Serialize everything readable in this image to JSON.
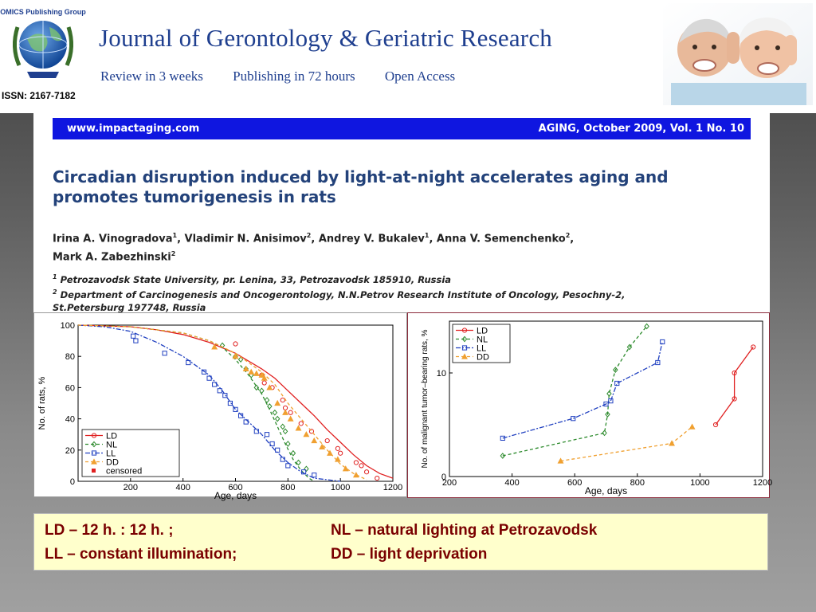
{
  "header": {
    "logo_text": "OMICS Publishing Group",
    "issn": "ISSN: 2167-7182",
    "journal_title": "Journal of Gerontology & Geriatric Research",
    "taglines": [
      "Review in 3 weeks",
      "Publishing in 72 hours",
      "Open Access"
    ]
  },
  "paper": {
    "site": "www.impactaging.com",
    "issue": "AGING, October 2009, Vol. 1 No. 10",
    "title_line1": "Circadian disruption induced by light-at-night accelerates aging and",
    "title_line2": "promotes tumorigenesis in rats",
    "authors_line1": "Irina A. Vinogradova",
    "authors_line1b": ", Vladimir N. Anisimov",
    "authors_line1c": ", Andrey V. Bukalev",
    "authors_line1d": ", Anna V. Semenchenko",
    "authors_line1e": ",",
    "authors_line2": "Mark A. Zabezhinski",
    "sup1": "1",
    "sup2": "2",
    "affil1": "Petrozavodsk State University, pr. Lenina, 33, Petrozavodsk 185910, Russia",
    "affil2": "Department of Carcinogenesis and Oncogerontology,  N.N.Petrov Research Institute of Oncology, Pesochny-2,",
    "affil2b": "St.Petersburg 197748, Russia"
  },
  "legend_box": {
    "ld": "LD – 12 h. : 12 h. ;",
    "nl": "NL – natural lighting at Petrozavodsk",
    "ll": "LL – constant illumination;",
    "dd": "DD – light deprivation"
  },
  "chart_data": [
    {
      "type": "line",
      "xlabel": "Age, days",
      "ylabel": "No. of rats, %",
      "xlim": [
        0,
        1200
      ],
      "ylim": [
        0,
        100
      ],
      "xticks": [
        "200",
        "400",
        "600",
        "800",
        "1000",
        "1200"
      ],
      "yticks": [
        "0",
        "20",
        "40",
        "60",
        "80",
        "100"
      ],
      "legend_position": "bottom-left",
      "extra_legend": "censored",
      "series": [
        {
          "name": "LD",
          "color": "#e02020",
          "dash": "",
          "marker": "circle",
          "x": [
            0,
            100,
            200,
            300,
            400,
            500,
            600,
            700,
            750,
            800,
            850,
            900,
            950,
            1000,
            1050,
            1100,
            1150,
            1200
          ],
          "y": [
            100,
            99.5,
            99,
            97,
            94,
            89,
            82,
            72,
            66,
            58,
            50,
            42,
            33,
            25,
            17,
            10,
            5,
            2
          ],
          "points": [
            [
              600,
              88
            ],
            [
              700,
              68
            ],
            [
              710,
              63
            ],
            [
              740,
              60
            ],
            [
              780,
              52
            ],
            [
              790,
              47
            ],
            [
              810,
              44
            ],
            [
              850,
              37
            ],
            [
              890,
              32
            ],
            [
              950,
              26
            ],
            [
              990,
              21
            ],
            [
              1000,
              18
            ],
            [
              1060,
              12
            ],
            [
              1080,
              10
            ],
            [
              1100,
              6
            ],
            [
              1140,
              2
            ]
          ]
        },
        {
          "name": "NL",
          "color": "#2e8b2e",
          "dash": "4 3",
          "marker": "diamond",
          "x": [
            0,
            200,
            400,
            500,
            550,
            600,
            650,
            700,
            730,
            760,
            790,
            820,
            850,
            880,
            900
          ],
          "y": [
            100,
            99,
            95,
            90,
            86,
            78,
            68,
            56,
            46,
            35,
            24,
            14,
            7,
            2,
            0
          ],
          "points": [
            [
              550,
              87
            ],
            [
              600,
              80
            ],
            [
              620,
              78
            ],
            [
              640,
              72
            ],
            [
              660,
              68
            ],
            [
              680,
              60
            ],
            [
              700,
              58
            ],
            [
              720,
              52
            ],
            [
              730,
              48
            ],
            [
              750,
              44
            ],
            [
              760,
              40
            ],
            [
              780,
              35
            ],
            [
              790,
              32
            ],
            [
              800,
              24
            ],
            [
              820,
              18
            ],
            [
              840,
              12
            ],
            [
              870,
              8
            ]
          ]
        },
        {
          "name": "LL",
          "color": "#2040c0",
          "dash": "6 2 2 2",
          "marker": "square",
          "x": [
            0,
            100,
            200,
            300,
            400,
            500,
            550,
            600,
            650,
            700,
            750,
            800,
            850,
            900,
            950,
            1000
          ],
          "y": [
            100,
            99,
            96,
            89,
            80,
            68,
            58,
            46,
            38,
            30,
            20,
            12,
            6,
            2,
            1,
            0
          ],
          "points": [
            [
              210,
              93
            ],
            [
              220,
              90
            ],
            [
              330,
              82
            ],
            [
              420,
              76
            ],
            [
              480,
              70
            ],
            [
              500,
              66
            ],
            [
              520,
              62
            ],
            [
              540,
              58
            ],
            [
              560,
              55
            ],
            [
              580,
              50
            ],
            [
              600,
              46
            ],
            [
              620,
              42
            ],
            [
              640,
              38
            ],
            [
              680,
              32
            ],
            [
              720,
              30
            ],
            [
              740,
              24
            ],
            [
              760,
              20
            ],
            [
              780,
              14
            ],
            [
              800,
              10
            ],
            [
              860,
              6
            ],
            [
              900,
              4
            ]
          ]
        },
        {
          "name": "DD",
          "color": "#f0a030",
          "dash": "4 3",
          "marker": "triangle",
          "x": [
            0,
            200,
            400,
            500,
            600,
            700,
            750,
            800,
            850,
            900,
            950,
            1000,
            1050,
            1100
          ],
          "y": [
            100,
            99,
            95,
            90,
            82,
            70,
            62,
            50,
            40,
            30,
            20,
            11,
            5,
            1
          ],
          "points": [
            [
              520,
              86
            ],
            [
              600,
              80
            ],
            [
              640,
              72
            ],
            [
              660,
              70
            ],
            [
              680,
              69
            ],
            [
              700,
              68
            ],
            [
              710,
              66
            ],
            [
              730,
              60
            ],
            [
              760,
              50
            ],
            [
              790,
              44
            ],
            [
              810,
              40
            ],
            [
              840,
              34
            ],
            [
              870,
              30
            ],
            [
              900,
              26
            ],
            [
              930,
              22
            ],
            [
              960,
              18
            ],
            [
              990,
              14
            ],
            [
              1020,
              8
            ],
            [
              1060,
              4
            ]
          ]
        }
      ]
    },
    {
      "type": "line",
      "xlabel": "Age, days",
      "ylabel": "No. of malignant tumor–bearing rats, %",
      "xlim": [
        200,
        1200
      ],
      "ylim": [
        0,
        15
      ],
      "xticks": [
        "200",
        "400",
        "600",
        "800",
        "1000",
        "1200"
      ],
      "yticks": [
        "0",
        "10"
      ],
      "legend_position": "top-left",
      "series": [
        {
          "name": "LD",
          "color": "#e02020",
          "dash": "",
          "marker": "circle",
          "x": [
            1050,
            1110,
            1110,
            1170
          ],
          "y": [
            5,
            7.5,
            10,
            12.5
          ]
        },
        {
          "name": "NL",
          "color": "#2e8b2e",
          "dash": "4 3",
          "marker": "diamond",
          "x": [
            370,
            695,
            705,
            710,
            730,
            775,
            830
          ],
          "y": [
            2,
            4.2,
            6,
            8,
            10.3,
            12.5,
            14.5
          ]
        },
        {
          "name": "LL",
          "color": "#2040c0",
          "dash": "6 2 2 2",
          "marker": "square",
          "x": [
            370,
            595,
            700,
            715,
            735,
            865,
            880
          ],
          "y": [
            3.7,
            5.6,
            7,
            7.3,
            9,
            11,
            13
          ]
        },
        {
          "name": "DD",
          "color": "#f0a030",
          "dash": "4 3",
          "marker": "triangle",
          "x": [
            555,
            910,
            975
          ],
          "y": [
            1.5,
            3.2,
            4.8
          ]
        }
      ]
    }
  ]
}
